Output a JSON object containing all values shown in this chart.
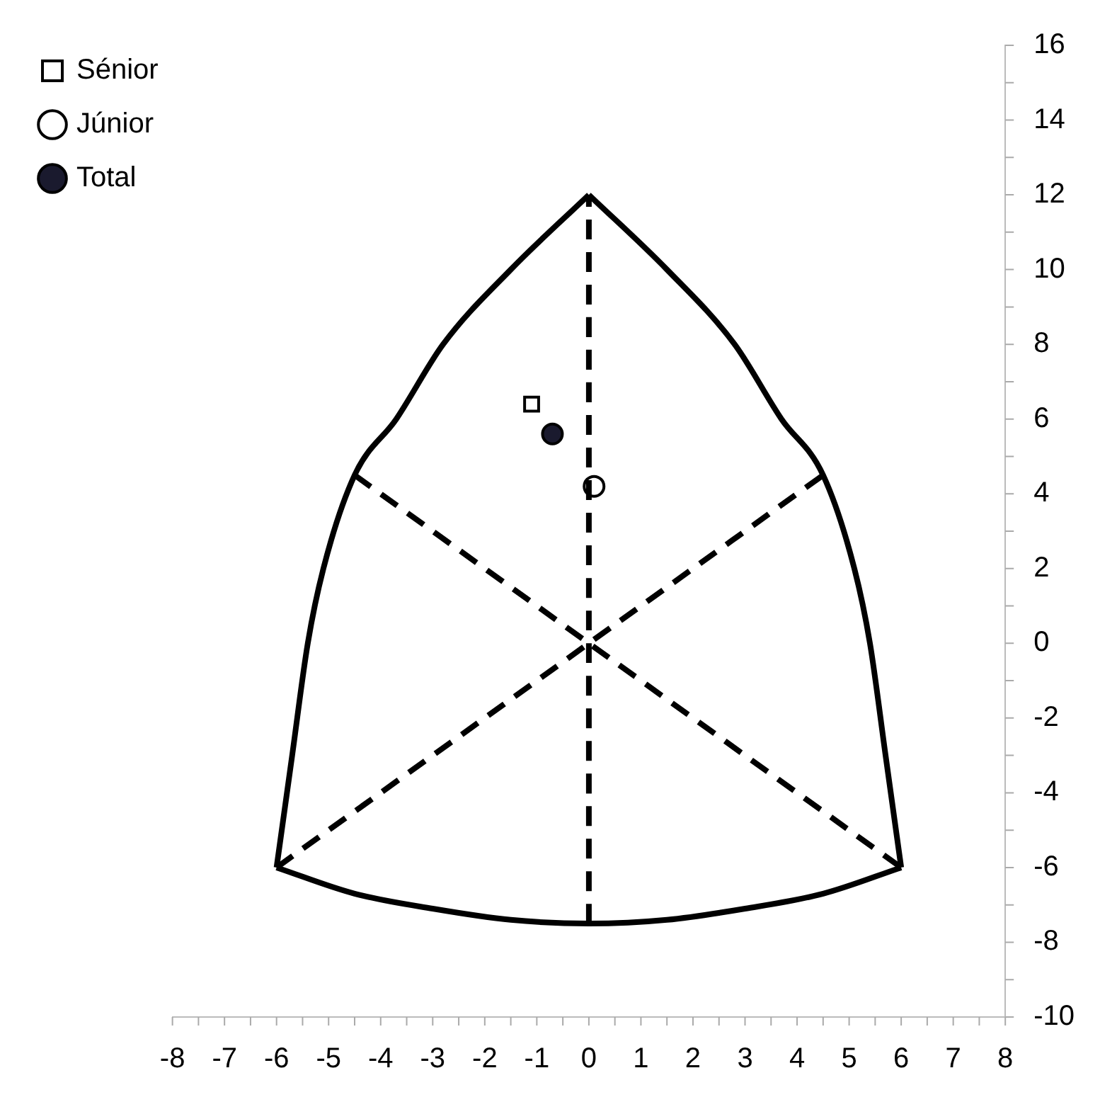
{
  "chart_data": {
    "type": "scatter",
    "legend": "top left",
    "grid": false,
    "xlim": [
      -8,
      8
    ],
    "ylim": [
      -10,
      16
    ],
    "xticks": [
      -8,
      {
        "value": -7.5,
        "label": null
      },
      -7,
      {
        "value": -6.5,
        "label": null
      },
      -6,
      {
        "value": -5.5,
        "label": null
      },
      -5,
      {
        "value": -4.5,
        "label": null
      },
      -4,
      {
        "value": -3.5,
        "label": null
      },
      -3,
      {
        "value": -2.5,
        "label": null
      },
      -2,
      {
        "value": -1.5,
        "label": null
      },
      -1,
      {
        "value": -0.5,
        "label": null
      },
      0,
      {
        "value": 0.5,
        "label": null
      },
      1,
      {
        "value": 1.5,
        "label": null
      },
      2,
      {
        "value": 2.5,
        "label": null
      },
      3,
      {
        "value": 3.5,
        "label": null
      },
      4,
      {
        "value": 4.5,
        "label": null
      },
      5,
      {
        "value": 5.5,
        "label": null
      },
      6,
      {
        "value": 6.5,
        "label": null
      },
      7,
      {
        "value": 7.5,
        "label": null
      },
      8
    ],
    "yticks": [
      -10,
      {
        "value": -9,
        "label": null
      },
      -8,
      {
        "value": -7,
        "label": null
      },
      -6,
      {
        "value": -5,
        "label": null
      },
      -4,
      {
        "value": -3,
        "label": null
      },
      -2,
      {
        "value": -1,
        "label": null
      },
      0,
      {
        "value": 1,
        "label": null
      },
      2,
      {
        "value": 3,
        "label": null
      },
      4,
      {
        "value": 5,
        "label": null
      },
      6,
      {
        "value": 7,
        "label": null
      },
      8,
      {
        "value": 9,
        "label": null
      },
      10,
      {
        "value": 11,
        "label": null
      },
      12,
      {
        "value": 13,
        "label": null
      },
      14,
      {
        "value": 15,
        "label": null
      },
      16
    ],
    "series": [
      {
        "type": "line",
        "color": "#000000",
        "marker": "none",
        "line_style": "solid",
        "x": [
          -6,
          -5.7,
          -5.4,
          -5.1,
          -4.5,
          -3.7,
          -2.8,
          -1.5,
          0
        ],
        "values": [
          -6,
          -3,
          0,
          2,
          4.5,
          6,
          8,
          10,
          12
        ]
      },
      {
        "type": "line",
        "color": "#000000",
        "marker": "none",
        "line_style": "solid",
        "x": [
          -6,
          -4.5,
          -3,
          -1.5,
          0,
          1.5,
          3,
          4.5,
          6
        ],
        "values": [
          -6,
          -6.7,
          -7.1,
          -7.4,
          -7.5,
          -7.4,
          -7.1,
          -6.7,
          -6
        ]
      },
      {
        "type": "line",
        "color": "#000000",
        "marker": "none",
        "line_style": "solid",
        "x": [
          0,
          1.5,
          2.8,
          3.7,
          4.5,
          5.1,
          5.4,
          5.7,
          6
        ],
        "values": [
          12,
          10,
          8,
          6,
          4.5,
          2,
          0,
          -3,
          -6
        ]
      },
      {
        "type": "line",
        "color": "#000000",
        "marker": "none",
        "line_style": "dashed",
        "x": [
          0,
          0
        ],
        "values": [
          -7.5,
          12
        ]
      },
      {
        "type": "line",
        "color": "#000000",
        "marker": "none",
        "line_style": "dashed",
        "x": [
          -4.5,
          6
        ],
        "values": [
          4.5,
          -6
        ]
      },
      {
        "type": "line",
        "color": "#000000",
        "marker": "none",
        "line_style": "dashed",
        "x": [
          -6,
          4.5
        ],
        "values": [
          -6,
          4.5
        ]
      },
      {
        "type": "scatter",
        "name": "Sénior",
        "color": "#ffffff",
        "marker": "square",
        "x": [
          -1.1
        ],
        "values": [
          6.4
        ]
      },
      {
        "type": "scatter",
        "name": "Júnior",
        "color": "#ffffff",
        "marker": "circle",
        "x": [
          0.1
        ],
        "values": [
          4.2
        ]
      },
      {
        "type": "scatter",
        "name": "Total",
        "color": "#1a1a2e",
        "marker": "circle",
        "x": [
          -0.7
        ],
        "values": [
          5.6
        ]
      }
    ]
  }
}
